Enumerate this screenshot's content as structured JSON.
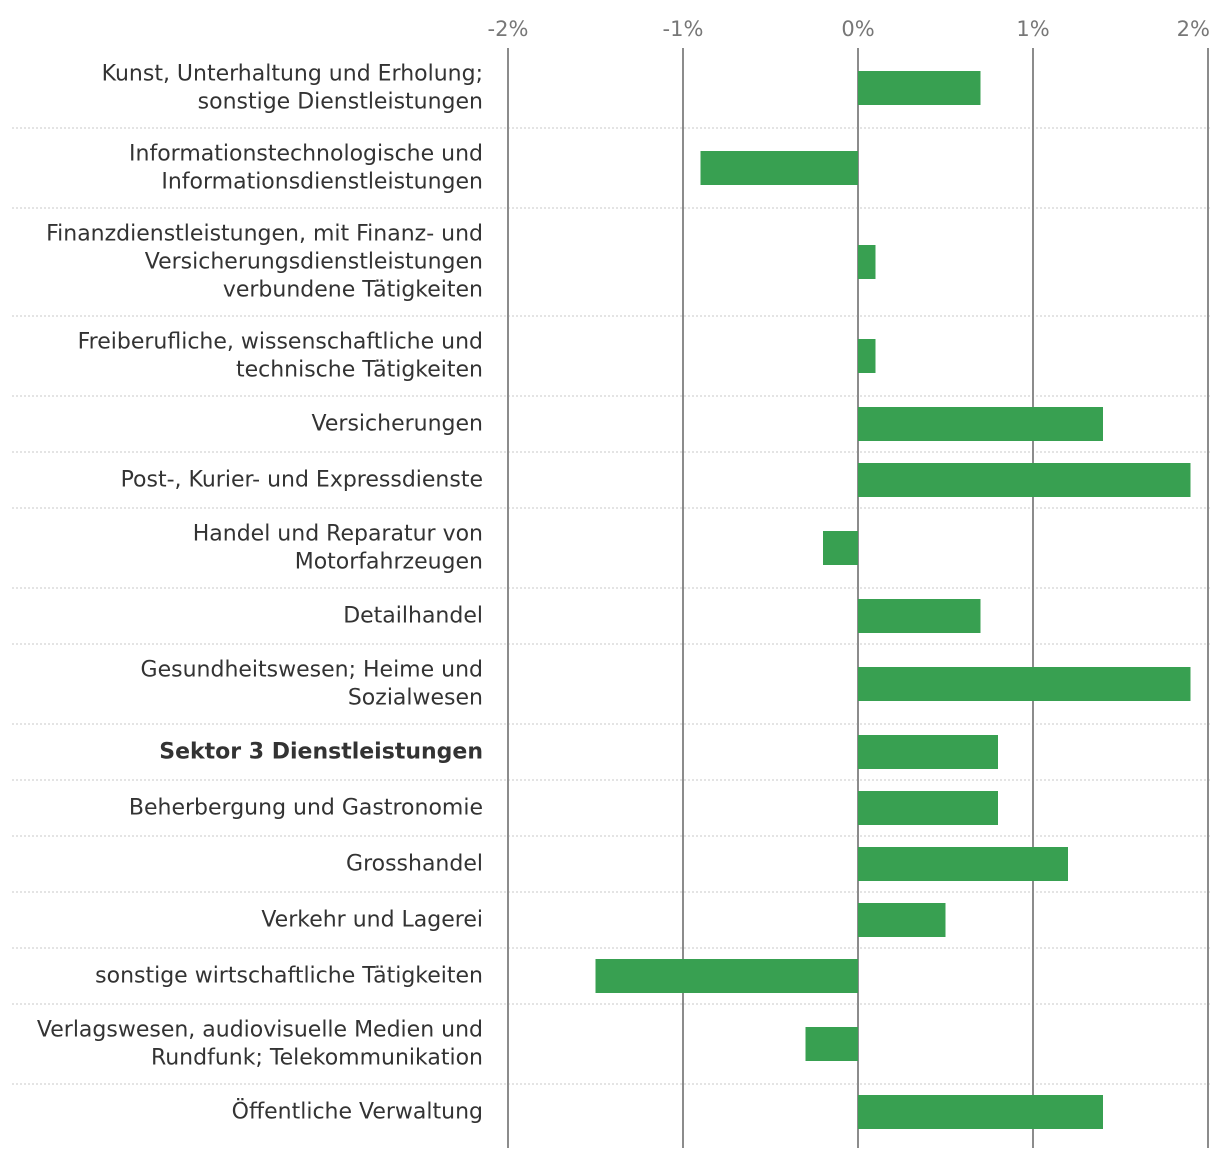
{
  "chart_data": {
    "type": "bar",
    "orientation": "horizontal",
    "title": "",
    "xlabel": "",
    "ylabel": "",
    "xlim": [
      -2,
      2
    ],
    "x_ticks": [
      -2,
      -1,
      0,
      1,
      2
    ],
    "x_tick_labels": [
      "-2%",
      "-1%",
      "0%",
      "1%",
      "2%"
    ],
    "bar_color": "#38a051",
    "grid": true,
    "legend": "none",
    "categories": [
      {
        "label_lines": [
          "Kunst, Unterhaltung und Erholung;",
          "sonstige Dienstleistungen"
        ],
        "value": 0.7,
        "bold": false
      },
      {
        "label_lines": [
          "Informationstechnologische und",
          "Informationsdienstleistungen"
        ],
        "value": -0.9,
        "bold": false
      },
      {
        "label_lines": [
          "Finanzdienstleistungen, mit Finanz- und",
          "Versicherungsdienstleistungen",
          "verbundene Tätigkeiten"
        ],
        "value": 0.1,
        "bold": false
      },
      {
        "label_lines": [
          "Freiberufliche, wissenschaftliche und",
          "technische Tätigkeiten"
        ],
        "value": 0.1,
        "bold": false
      },
      {
        "label_lines": [
          "Versicherungen"
        ],
        "value": 1.4,
        "bold": false
      },
      {
        "label_lines": [
          "Post-, Kurier- und Expressdienste"
        ],
        "value": 1.9,
        "bold": false
      },
      {
        "label_lines": [
          "Handel und Reparatur von",
          "Motorfahrzeugen"
        ],
        "value": -0.2,
        "bold": false
      },
      {
        "label_lines": [
          "Detailhandel"
        ],
        "value": 0.7,
        "bold": false
      },
      {
        "label_lines": [
          "Gesundheitswesen; Heime und",
          "Sozialwesen"
        ],
        "value": 1.9,
        "bold": false
      },
      {
        "label_lines": [
          "Sektor 3 Dienstleistungen"
        ],
        "value": 0.8,
        "bold": true
      },
      {
        "label_lines": [
          "Beherbergung und Gastronomie"
        ],
        "value": 0.8,
        "bold": false
      },
      {
        "label_lines": [
          "Grosshandel"
        ],
        "value": 1.2,
        "bold": false
      },
      {
        "label_lines": [
          "Verkehr und Lagerei"
        ],
        "value": 0.5,
        "bold": false
      },
      {
        "label_lines": [
          "sonstige wirtschaftliche Tätigkeiten"
        ],
        "value": -1.5,
        "bold": false
      },
      {
        "label_lines": [
          "Verlagswesen, audiovisuelle Medien und",
          "Rundfunk; Telekommunikation"
        ],
        "value": -0.3,
        "bold": false
      },
      {
        "label_lines": [
          "Öffentliche Verwaltung"
        ],
        "value": 1.4,
        "bold": false
      }
    ]
  }
}
